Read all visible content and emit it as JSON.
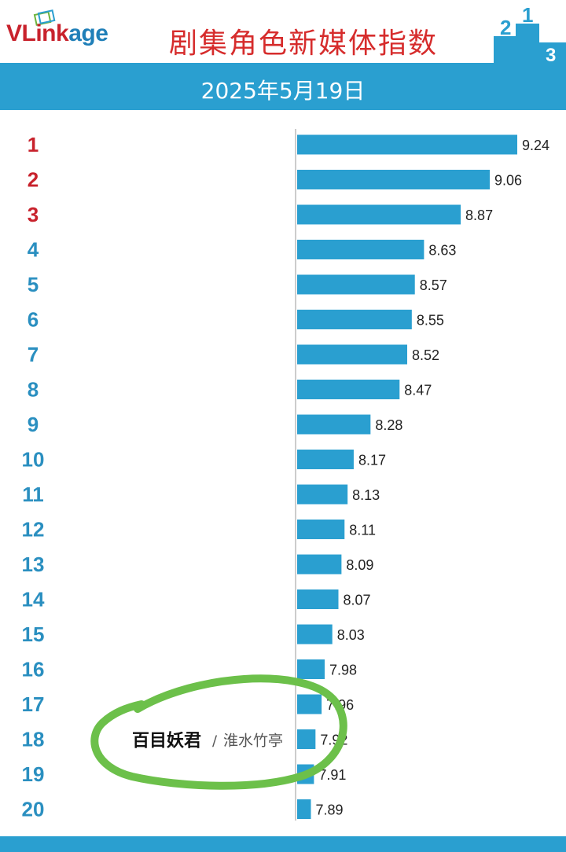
{
  "header": {
    "logo_text_prefix": "VLink",
    "logo_text_suffix": "age",
    "title": "剧集角色新媒体指数",
    "podium_numbers": [
      "2",
      "1",
      "3"
    ]
  },
  "date": "2025年5月19日",
  "colors": {
    "bar": "#2a9fd0",
    "rank_top": "#c8222c",
    "rank_other": "#2a8fc0",
    "annotation": "#6cc04a"
  },
  "chart_data": {
    "type": "bar",
    "orientation": "horizontal",
    "categories": [
      "1",
      "2",
      "3",
      "4",
      "5",
      "6",
      "7",
      "8",
      "9",
      "10",
      "11",
      "12",
      "13",
      "14",
      "15",
      "16",
      "17",
      "18",
      "19",
      "20"
    ],
    "values": [
      9.24,
      9.06,
      8.87,
      8.63,
      8.57,
      8.55,
      8.52,
      8.47,
      8.28,
      8.17,
      8.13,
      8.11,
      8.09,
      8.07,
      8.03,
      7.98,
      7.96,
      7.92,
      7.91,
      7.89
    ],
    "value_labels": [
      "9.24",
      "9.06",
      "8.87",
      "8.63",
      "8.57",
      "8.55",
      "8.52",
      "8.47",
      "8.28",
      "8.17",
      "8.13",
      "8.11",
      "8.09",
      "8.07",
      "8.03",
      "7.98",
      "7.96",
      "7.92",
      "7.91",
      "7.89"
    ],
    "highlight": {
      "rank": "18",
      "character": "百目妖君",
      "actor": "淮水竹亭"
    },
    "xlim": [
      7.8,
      9.24
    ],
    "grid": false,
    "legend": "none"
  }
}
